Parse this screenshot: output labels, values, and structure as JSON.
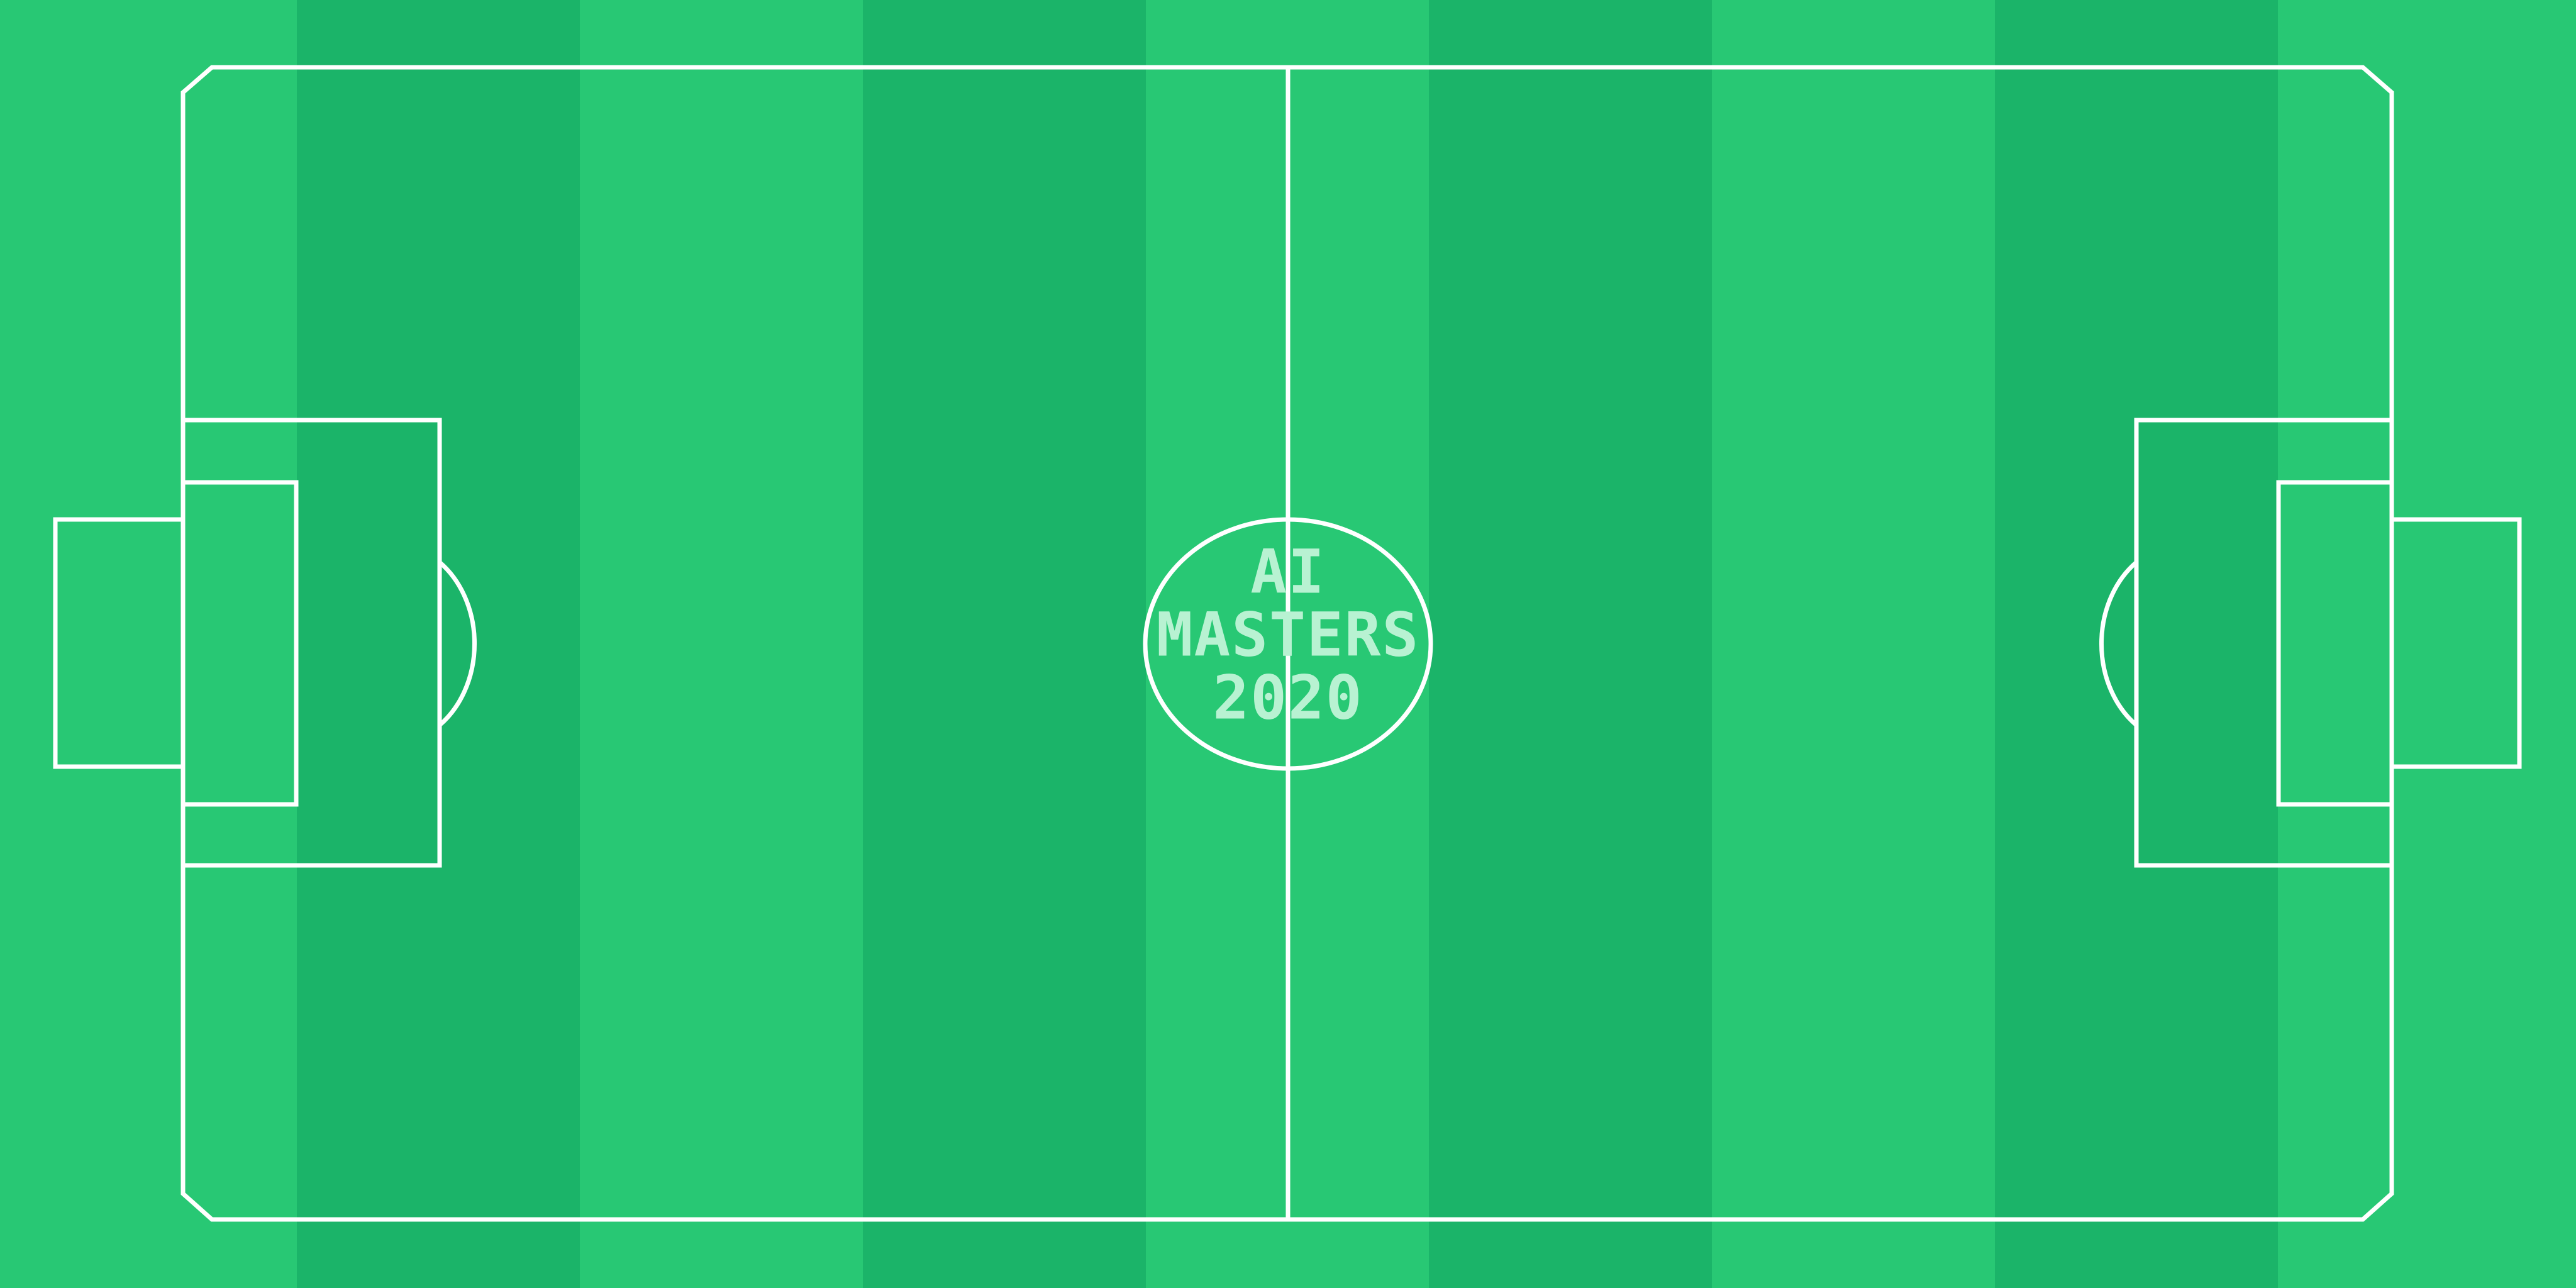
{
  "colors": {
    "stripe_light": "#28c874",
    "stripe_dark": "#1bb469",
    "line": "#ffffff",
    "logo": "#b8f2d2"
  },
  "logo": {
    "line1": "AI",
    "line2": "MASTERS",
    "line3": "2020"
  }
}
